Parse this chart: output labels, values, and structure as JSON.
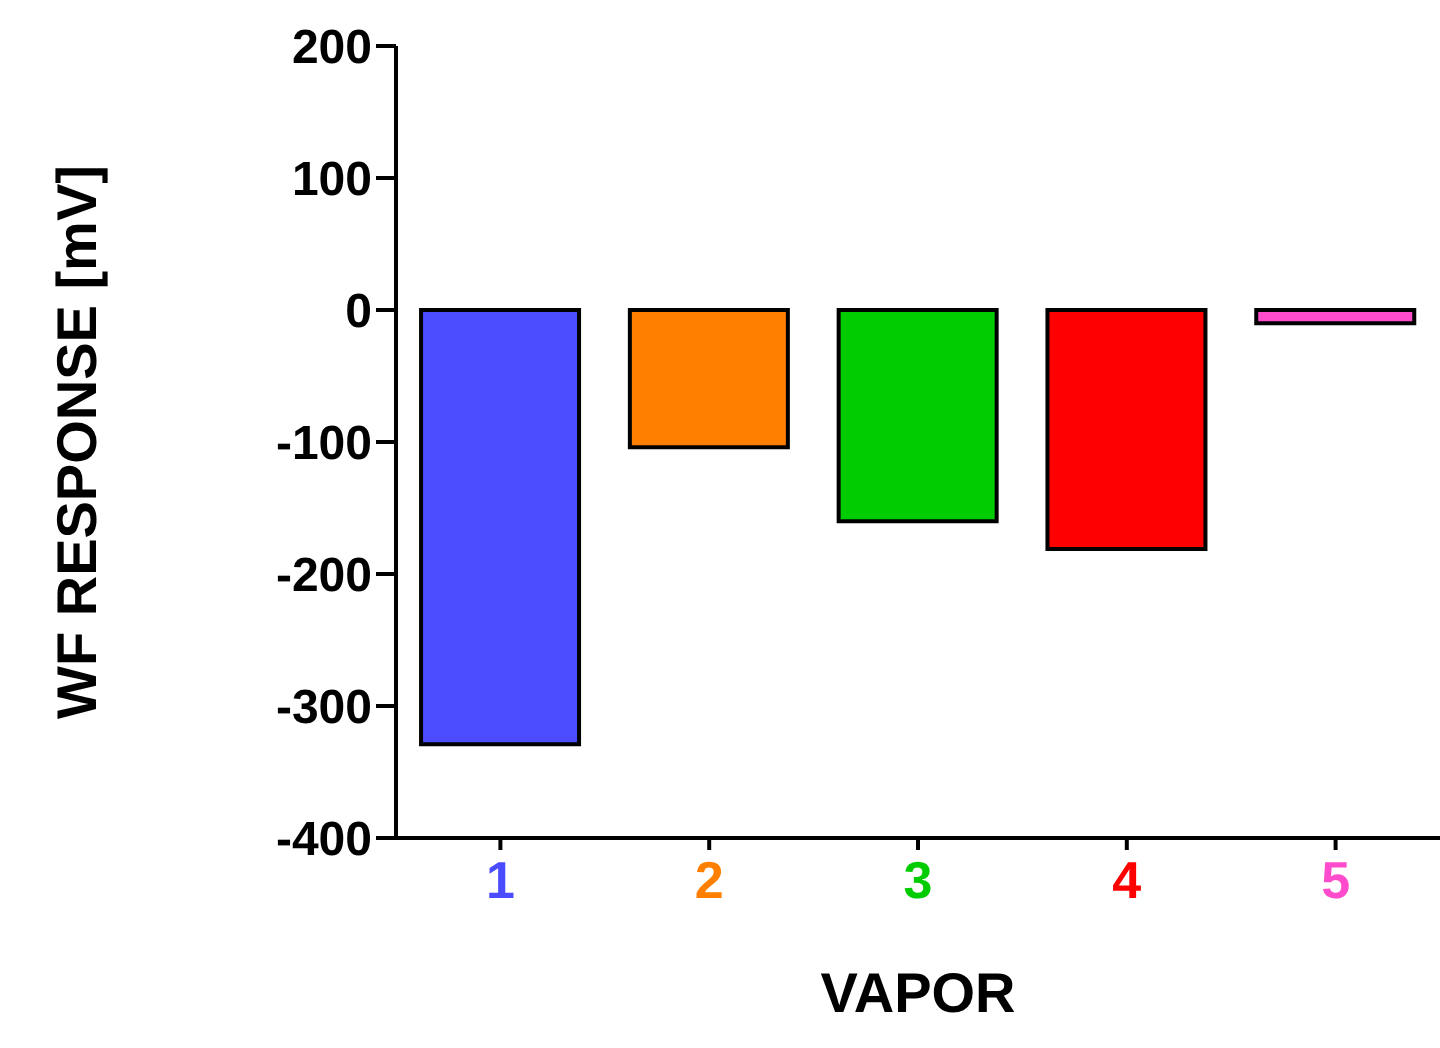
{
  "chart_data": {
    "type": "bar",
    "xlabel": "VAPOR",
    "ylabel": "WF RESPONSE [mV]",
    "categories": [
      "1",
      "2",
      "3",
      "4",
      "5"
    ],
    "values": [
      -329,
      -104,
      -160,
      -181,
      -10
    ],
    "colors": [
      "#4b4bff",
      "#ff8000",
      "#00cc00",
      "#ff0000",
      "#ff4ccc"
    ],
    "ylim": [
      -400,
      200
    ],
    "yticks": [
      -400,
      -300,
      -200,
      -100,
      0,
      100,
      200
    ],
    "grid": false,
    "legend": false
  }
}
